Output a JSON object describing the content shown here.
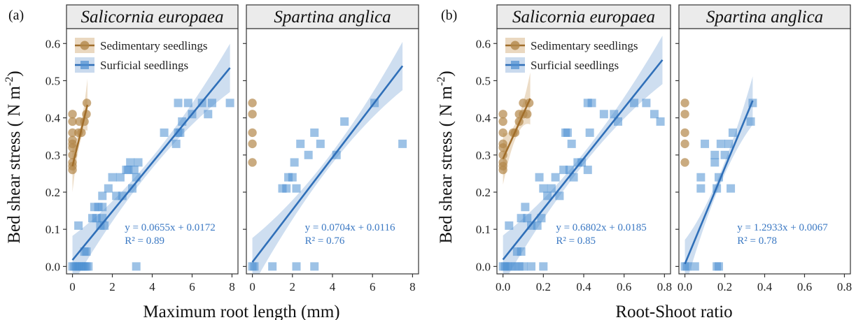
{
  "colors": {
    "sedimentary": "#b3884a",
    "sedimentary_dark": "#a06d2a",
    "surficial": "#4d8fd1",
    "fit_blue": "#2f6fb8",
    "ribbon_blue": "#c9daee",
    "ribbon_brown": "#ead8c0",
    "strip_fill": "#ebebeb",
    "equation_text": "#3a78c3"
  },
  "legend": {
    "position": "top-left",
    "items": [
      {
        "label": "Sedimentary seedlings",
        "marker": "circle",
        "color": "#b3884a"
      },
      {
        "label": "Surficial seedlings",
        "marker": "square",
        "color": "#4d8fd1"
      }
    ]
  },
  "ylabel": "Bed shear stress ( N m",
  "ylabel_exp": "-2",
  "ylabel_end": ")",
  "chart_data": [
    {
      "type": "scatter",
      "panel_label": "(a)",
      "xlabel": "Maximum root length (mm)",
      "y_ticks": [
        "0.0",
        "0.1",
        "0.2",
        "0.3",
        "0.4",
        "0.5",
        "0.6"
      ],
      "ylim": [
        -0.02,
        0.64
      ],
      "facets": [
        {
          "strip": "Salicornia europaea",
          "xlim": [
            -0.3,
            8.3
          ],
          "x_ticks": [
            0,
            2,
            4,
            6,
            8
          ],
          "x_tick_labels": [
            "0",
            "2",
            "4",
            "6",
            "8"
          ],
          "show_legend": true,
          "equation": "y = 0.0655x + 0.0172",
          "r2": "R² = 0.89",
          "fit_surficial": {
            "slope": 0.0655,
            "intercept": 0.0172,
            "x_range": [
              0,
              7.9
            ]
          },
          "fit_sedimentary": {
            "slope": 0.22,
            "intercept": 0.27,
            "x_range": [
              0,
              0.75
            ]
          },
          "sedimentary": [
            [
              0,
              0.26
            ],
            [
              0,
              0.27
            ],
            [
              0,
              0.28
            ],
            [
              0,
              0.3
            ],
            [
              0,
              0.32
            ],
            [
              0,
              0.33
            ],
            [
              0,
              0.34
            ],
            [
              0,
              0.36
            ],
            [
              0,
              0.39
            ],
            [
              0,
              0.41
            ],
            [
              0.3,
              0.36
            ],
            [
              0.35,
              0.39
            ],
            [
              0.45,
              0.36
            ],
            [
              0.6,
              0.39
            ],
            [
              0.7,
              0.41
            ],
            [
              0.72,
              0.44
            ]
          ],
          "surficial": [
            [
              0,
              0
            ],
            [
              0.1,
              0
            ],
            [
              0.2,
              0
            ],
            [
              0.3,
              0
            ],
            [
              0.4,
              0
            ],
            [
              0.5,
              0
            ],
            [
              0.6,
              0
            ],
            [
              0.7,
              0
            ],
            [
              0.8,
              0
            ],
            [
              0.3,
              0.11
            ],
            [
              0.6,
              0.04
            ],
            [
              0.7,
              0.04
            ],
            [
              1.0,
              0.13
            ],
            [
              1.1,
              0.16
            ],
            [
              1.2,
              0.13
            ],
            [
              1.3,
              0.16
            ],
            [
              1.4,
              0.11
            ],
            [
              1.5,
              0.13
            ],
            [
              1.5,
              0.16
            ],
            [
              1.6,
              0.11
            ],
            [
              1.5,
              0.19
            ],
            [
              1.8,
              0.21
            ],
            [
              2.0,
              0.24
            ],
            [
              2.2,
              0.19
            ],
            [
              2.4,
              0.24
            ],
            [
              2.5,
              0.19
            ],
            [
              2.7,
              0.26
            ],
            [
              2.8,
              0.26
            ],
            [
              2.9,
              0.28
            ],
            [
              3.0,
              0.21
            ],
            [
              3.1,
              0.26
            ],
            [
              3.2,
              0.24
            ],
            [
              3.3,
              0.28
            ],
            [
              3.2,
              0
            ],
            [
              4.6,
              0.36
            ],
            [
              5.2,
              0.33
            ],
            [
              5.3,
              0.36
            ],
            [
              5.3,
              0.44
            ],
            [
              5.4,
              0.36
            ],
            [
              5.5,
              0.39
            ],
            [
              5.8,
              0.44
            ],
            [
              6.0,
              0.41
            ],
            [
              6.5,
              0.44
            ],
            [
              6.8,
              0.41
            ],
            [
              7.0,
              0.44
            ],
            [
              7.9,
              0.44
            ]
          ]
        },
        {
          "strip": "Spartina anglica",
          "xlim": [
            -0.3,
            8.3
          ],
          "x_ticks": [
            0,
            2,
            4,
            6,
            8
          ],
          "x_tick_labels": [
            "0",
            "2",
            "4",
            "6",
            "8"
          ],
          "show_legend": false,
          "equation": "y = 0.0704x + 0.0116",
          "r2": "R² = 0.76",
          "fit_surficial": {
            "slope": 0.0704,
            "intercept": 0.0116,
            "x_range": [
              0,
              7.5
            ]
          },
          "fit_sedimentary": null,
          "sedimentary": [
            [
              0,
              0.28
            ],
            [
              0,
              0.33
            ],
            [
              0,
              0.36
            ],
            [
              0,
              0.41
            ],
            [
              0,
              0.44
            ]
          ],
          "surficial": [
            [
              0,
              0
            ],
            [
              0.1,
              0
            ],
            [
              1.0,
              0
            ],
            [
              1.5,
              0.21
            ],
            [
              1.7,
              0.21
            ],
            [
              1.8,
              0.24
            ],
            [
              2.0,
              0.24
            ],
            [
              2.1,
              0.28
            ],
            [
              2.2,
              0.21
            ],
            [
              2.2,
              0
            ],
            [
              2.4,
              0.33
            ],
            [
              2.8,
              0.3
            ],
            [
              3.1,
              0.36
            ],
            [
              3.1,
              0
            ],
            [
              3.4,
              0.33
            ],
            [
              4.2,
              0.3
            ],
            [
              4.6,
              0.39
            ],
            [
              6.1,
              0.44
            ],
            [
              7.5,
              0.33
            ]
          ]
        }
      ]
    },
    {
      "type": "scatter",
      "panel_label": "(b)",
      "xlabel": "Root-Shoot ratio",
      "y_ticks": [
        "0.0",
        "0.1",
        "0.2",
        "0.3",
        "0.4",
        "0.5",
        "0.6"
      ],
      "ylim": [
        -0.02,
        0.64
      ],
      "facets": [
        {
          "strip": "Salicornia europaea",
          "xlim": [
            -0.03,
            0.83
          ],
          "x_ticks": [
            0,
            0.2,
            0.4,
            0.6,
            0.8
          ],
          "x_tick_labels": [
            "0.0",
            "0.2",
            "0.4",
            "0.6",
            "0.8"
          ],
          "show_legend": true,
          "equation": "y = 0.6802x + 0.0185",
          "r2": "R² = 0.85",
          "fit_surficial": {
            "slope": 0.6802,
            "intercept": 0.0185,
            "x_range": [
              0,
              0.79
            ]
          },
          "fit_sedimentary": {
            "slope": 1.2,
            "intercept": 0.29,
            "x_range": [
              0,
              0.135
            ]
          },
          "sedimentary": [
            [
              0,
              0.26
            ],
            [
              0,
              0.27
            ],
            [
              0,
              0.28
            ],
            [
              0,
              0.3
            ],
            [
              0,
              0.32
            ],
            [
              0,
              0.33
            ],
            [
              0,
              0.36
            ],
            [
              0,
              0.39
            ],
            [
              0,
              0.41
            ],
            [
              0.05,
              0.36
            ],
            [
              0.06,
              0.36
            ],
            [
              0.08,
              0.39
            ],
            [
              0.08,
              0.41
            ],
            [
              0.1,
              0.41
            ],
            [
              0.1,
              0.44
            ],
            [
              0.12,
              0.41
            ],
            [
              0.13,
              0.44
            ]
          ],
          "surficial": [
            [
              0,
              0
            ],
            [
              0.01,
              0
            ],
            [
              0.02,
              0
            ],
            [
              0.04,
              0
            ],
            [
              0.06,
              0
            ],
            [
              0.08,
              0
            ],
            [
              0.1,
              0
            ],
            [
              0.14,
              0
            ],
            [
              0.2,
              0
            ],
            [
              0.03,
              0.11
            ],
            [
              0.07,
              0.04
            ],
            [
              0.09,
              0.04
            ],
            [
              0.09,
              0.13
            ],
            [
              0.11,
              0.16
            ],
            [
              0.12,
              0.13
            ],
            [
              0.14,
              0.11
            ],
            [
              0.17,
              0.11
            ],
            [
              0.18,
              0.24
            ],
            [
              0.19,
              0.13
            ],
            [
              0.2,
              0.21
            ],
            [
              0.22,
              0.19
            ],
            [
              0.24,
              0.21
            ],
            [
              0.26,
              0.24
            ],
            [
              0.28,
              0.19
            ],
            [
              0.3,
              0.26
            ],
            [
              0.31,
              0.36
            ],
            [
              0.32,
              0.36
            ],
            [
              0.33,
              0.26
            ],
            [
              0.34,
              0.33
            ],
            [
              0.35,
              0.24
            ],
            [
              0.37,
              0.28
            ],
            [
              0.39,
              0.28
            ],
            [
              0.42,
              0.26
            ],
            [
              0.43,
              0.36
            ],
            [
              0.44,
              0.44
            ],
            [
              0.42,
              0.44
            ],
            [
              0.5,
              0.41
            ],
            [
              0.55,
              0.41
            ],
            [
              0.57,
              0.39
            ],
            [
              0.65,
              0.44
            ],
            [
              0.71,
              0.44
            ],
            [
              0.75,
              0.41
            ],
            [
              0.78,
              0.39
            ]
          ]
        },
        {
          "strip": "Spartina anglica",
          "xlim": [
            -0.03,
            0.83
          ],
          "x_ticks": [
            0,
            0.2,
            0.4,
            0.6,
            0.8
          ],
          "x_tick_labels": [
            "0.0",
            "0.2",
            "0.4",
            "0.6",
            "0.8"
          ],
          "show_legend": false,
          "equation": "y = 1.2933x + 0.0067",
          "r2": "R² = 0.78",
          "fit_surficial": {
            "slope": 1.2933,
            "intercept": 0.0067,
            "x_range": [
              0,
              0.34
            ]
          },
          "fit_sedimentary": null,
          "sedimentary": [
            [
              0,
              0.28
            ],
            [
              0,
              0.33
            ],
            [
              0,
              0.36
            ],
            [
              0,
              0.41
            ],
            [
              0,
              0.44
            ]
          ],
          "surficial": [
            [
              0,
              0
            ],
            [
              0.01,
              0
            ],
            [
              0.05,
              0
            ],
            [
              0.1,
              0.33
            ],
            [
              0.08,
              0.24
            ],
            [
              0.08,
              0.21
            ],
            [
              0.15,
              0.28
            ],
            [
              0.15,
              0.3
            ],
            [
              0.16,
              0.21
            ],
            [
              0.16,
              0
            ],
            [
              0.17,
              0.24
            ],
            [
              0.17,
              0
            ],
            [
              0.18,
              0.33
            ],
            [
              0.2,
              0.3
            ],
            [
              0.22,
              0.33
            ],
            [
              0.23,
              0.21
            ],
            [
              0.24,
              0.36
            ],
            [
              0.33,
              0.39
            ],
            [
              0.34,
              0.44
            ]
          ]
        }
      ]
    }
  ]
}
